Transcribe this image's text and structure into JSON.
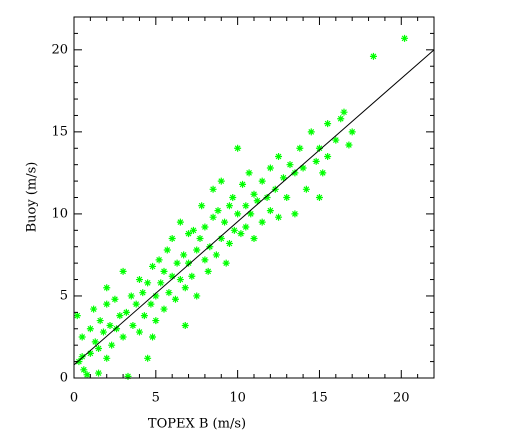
{
  "chart_data": {
    "type": "scatter",
    "xlabel": "TOPEX B (m/s)",
    "ylabel": "Buoy (m/s)",
    "xlim": [
      0,
      22
    ],
    "ylim": [
      0,
      22
    ],
    "xticks": [
      0,
      5,
      10,
      15,
      20
    ],
    "yticks": [
      0,
      5,
      10,
      15,
      20
    ],
    "xminorticks": [
      1,
      2,
      3,
      4,
      6,
      7,
      8,
      9,
      11,
      12,
      13,
      14,
      16,
      17,
      18,
      19,
      21
    ],
    "yminorticks": [
      1,
      2,
      3,
      4,
      6,
      7,
      8,
      9,
      11,
      12,
      13,
      14,
      16,
      17,
      18,
      19,
      21
    ],
    "color": "#00ff00",
    "x": [
      0.2,
      0.3,
      0.5,
      0.6,
      0.8,
      1.0,
      1.0,
      1.2,
      1.3,
      1.5,
      1.6,
      1.8,
      2.0,
      2.0,
      2.2,
      2.3,
      2.5,
      2.6,
      2.8,
      3.0,
      3.0,
      3.2,
      3.3,
      3.5,
      3.6,
      3.8,
      4.0,
      4.0,
      4.2,
      4.3,
      4.5,
      4.5,
      4.7,
      4.8,
      5.0,
      5.0,
      5.2,
      5.3,
      5.5,
      5.5,
      5.7,
      5.8,
      6.0,
      6.0,
      6.2,
      6.3,
      6.5,
      6.5,
      6.7,
      6.8,
      7.0,
      7.0,
      7.2,
      7.3,
      7.5,
      7.5,
      7.7,
      7.8,
      8.0,
      8.0,
      8.2,
      8.3,
      8.5,
      8.5,
      8.7,
      8.8,
      9.0,
      9.0,
      9.2,
      9.3,
      9.5,
      9.5,
      9.7,
      9.8,
      10.0,
      10.0,
      10.2,
      10.3,
      10.5,
      10.5,
      10.7,
      10.8,
      11.0,
      11.0,
      11.2,
      11.5,
      11.5,
      11.8,
      12.0,
      12.0,
      12.3,
      12.5,
      12.5,
      12.8,
      13.0,
      13.2,
      13.5,
      13.5,
      13.8,
      14.0,
      14.2,
      14.5,
      14.8,
      15.0,
      15.2,
      15.5,
      15.5,
      16.0,
      16.3,
      16.5,
      16.8,
      17.0,
      18.3,
      20.2,
      1.5,
      2.0,
      0.5,
      4.8,
      6.8,
      15.0
    ],
    "y": [
      3.8,
      1.0,
      2.5,
      0.5,
      0.2,
      1.5,
      3.0,
      4.2,
      2.2,
      1.8,
      3.5,
      2.8,
      4.5,
      1.2,
      3.2,
      2.0,
      4.8,
      3.0,
      3.8,
      2.5,
      6.5,
      4.0,
      0.1,
      5.0,
      3.2,
      4.5,
      2.8,
      6.0,
      5.2,
      3.8,
      1.2,
      5.8,
      4.5,
      6.8,
      5.0,
      3.5,
      7.2,
      5.8,
      4.2,
      6.5,
      7.8,
      5.2,
      6.2,
      8.5,
      4.8,
      7.0,
      6.0,
      9.5,
      7.5,
      5.5,
      7.0,
      8.8,
      6.2,
      9.0,
      7.8,
      5.0,
      8.5,
      10.5,
      7.2,
      9.2,
      6.5,
      8.0,
      9.8,
      11.5,
      7.5,
      10.2,
      8.5,
      12.0,
      9.5,
      7.0,
      10.5,
      8.2,
      11.0,
      9.0,
      10.0,
      14.0,
      8.8,
      11.8,
      10.5,
      9.2,
      12.5,
      10.0,
      11.2,
      8.5,
      10.8,
      12.0,
      9.5,
      11.0,
      12.8,
      10.2,
      11.5,
      13.5,
      9.8,
      12.2,
      11.0,
      13.0,
      12.5,
      10.0,
      14.0,
      12.8,
      11.5,
      15.0,
      13.2,
      14.0,
      12.5,
      15.5,
      13.5,
      14.5,
      15.8,
      16.2,
      14.2,
      15.0,
      19.6,
      20.7,
      0.3,
      5.5,
      1.3,
      2.5,
      3.2,
      11.0
    ],
    "fit_line": {
      "x": [
        0,
        22
      ],
      "y": [
        0.8,
        20
      ]
    }
  }
}
